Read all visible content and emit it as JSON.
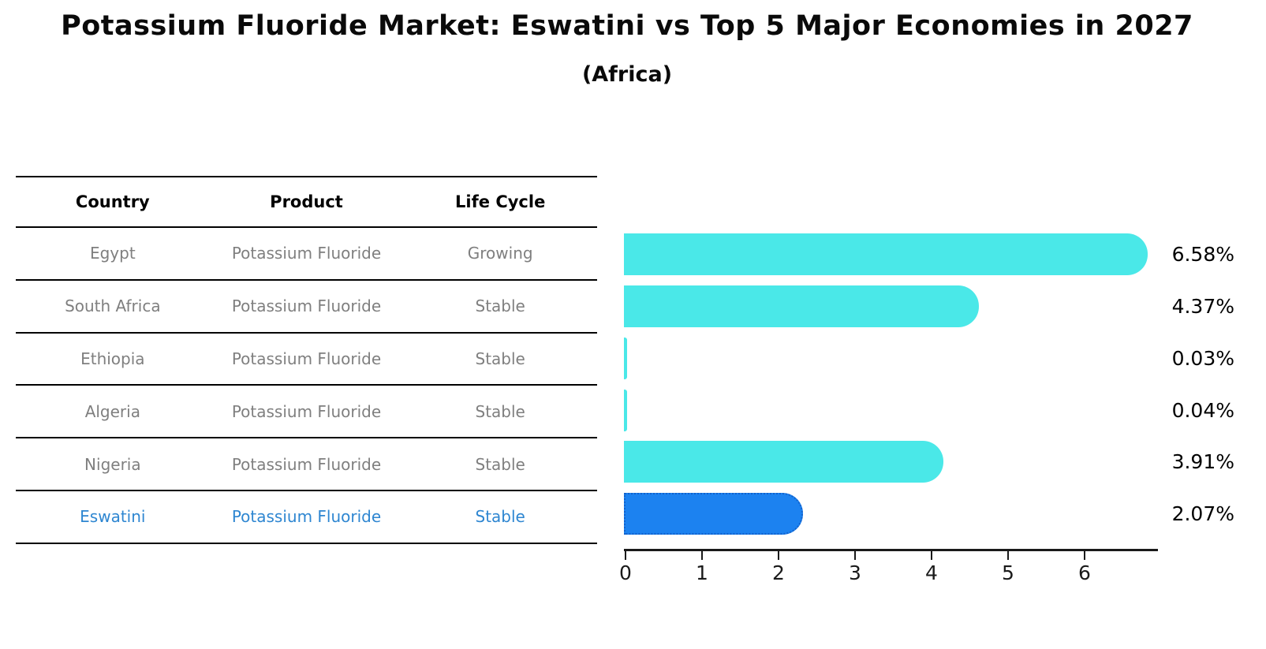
{
  "title": "Potassium Fluoride Market: Eswatini vs Top 5 Major Economies in 2027",
  "subtitle": "(Africa)",
  "table": {
    "headers": [
      "Country",
      "Product",
      "Life Cycle"
    ],
    "rows": [
      {
        "country": "Egypt",
        "product": "Potassium Fluoride",
        "life_cycle": "Growing",
        "highlight": false
      },
      {
        "country": "South Africa",
        "product": "Potassium Fluoride",
        "life_cycle": "Stable",
        "highlight": false
      },
      {
        "country": "Ethiopia",
        "product": "Potassium Fluoride",
        "life_cycle": "Stable",
        "highlight": false
      },
      {
        "country": "Algeria",
        "product": "Potassium Fluoride",
        "life_cycle": "Stable",
        "highlight": false
      },
      {
        "country": "Nigeria",
        "product": "Potassium Fluoride",
        "life_cycle": "Stable",
        "highlight": false
      },
      {
        "country": "Eswatini",
        "product": "Potassium Fluoride",
        "life_cycle": "Stable",
        "highlight": true
      }
    ]
  },
  "chart_data": {
    "type": "bar",
    "orientation": "horizontal",
    "categories": [
      "Egypt",
      "South Africa",
      "Ethiopia",
      "Algeria",
      "Nigeria",
      "Eswatini"
    ],
    "values": [
      6.58,
      4.37,
      0.03,
      0.04,
      3.91,
      2.07
    ],
    "value_labels": [
      "6.58%",
      "4.37%",
      "0.03%",
      "0.04%",
      "3.91%",
      "2.07%"
    ],
    "x_ticks": [
      0,
      1,
      2,
      3,
      4,
      5,
      6
    ],
    "xlim": [
      0,
      6.98
    ],
    "grid": "off",
    "highlight_index": 5,
    "bar_color": "#4AE8E8",
    "highlight_color": "#1C82F0",
    "highlight_edge_color": "#1262cc",
    "highlight_text_color": "#2e86d1",
    "row_text_color": "#7f7f7f"
  }
}
